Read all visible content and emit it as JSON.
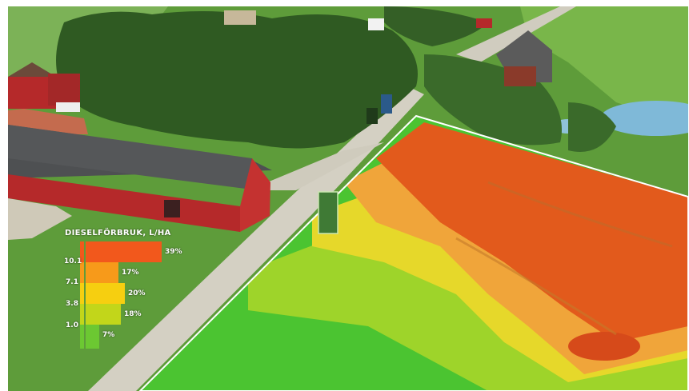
{
  "legend": {
    "title": "DIESELFÖRBRUK, L/HA",
    "ticks": [
      "10.1",
      "7.1",
      "3.8",
      "1.0"
    ],
    "bars": [
      {
        "label": "39%",
        "value": 39,
        "color": "#f2581c"
      },
      {
        "label": "17%",
        "value": 17,
        "color": "#f79a1a"
      },
      {
        "label": "20%",
        "value": 20,
        "color": "#f6cf10"
      },
      {
        "label": "18%",
        "value": 18,
        "color": "#c2d61a"
      },
      {
        "label": "7%",
        "value": 7,
        "color": "#6cc832"
      }
    ]
  },
  "colors": {
    "grass": "#4f9a2e",
    "road": "#d9d6c8",
    "barn_red": "#b5292a",
    "roof": "#4e5052",
    "trees": "#2f5a22",
    "water": "#7fb9d8",
    "heat_high": "#e25a1c",
    "heat_mid": "#f0a53a",
    "heat_low": "#b5d82a",
    "heat_min": "#4bc431"
  }
}
